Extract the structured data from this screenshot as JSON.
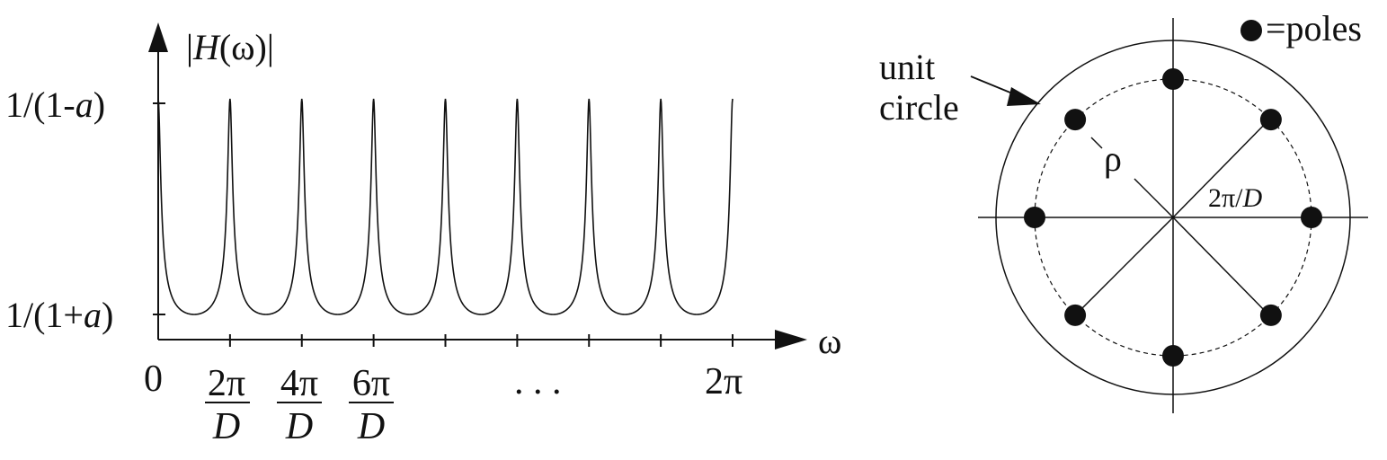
{
  "left_plot": {
    "y_axis_label_pre": "|",
    "y_axis_label_var": "H",
    "y_axis_label_post": "(ω)|",
    "x_axis_label": "ω",
    "y_top_label_pre": "1/(1-",
    "y_top_label_var": "a",
    "y_top_label_post": ")",
    "y_bottom_label_pre": "1/(1+",
    "y_bottom_label_var": "a",
    "y_bottom_label_post": ")",
    "tick_zero": "0",
    "tick_two_pi": "2π",
    "ellipsis": ". . .",
    "fraction_labels": [
      {
        "num": "2π",
        "den": "D"
      },
      {
        "num": "4π",
        "den": "D"
      },
      {
        "num": "6π",
        "den": "D"
      }
    ],
    "peak_count": 8,
    "curve_color": "#111111"
  },
  "right_plot": {
    "legend_label": "=poles",
    "unit_circle_label_line1": "unit",
    "unit_circle_label_line2": "circle",
    "radius_label": "ρ",
    "angle_label_num": "2π/",
    "angle_label_var": "D",
    "pole_count": 8,
    "pole_color": "#111111"
  }
}
